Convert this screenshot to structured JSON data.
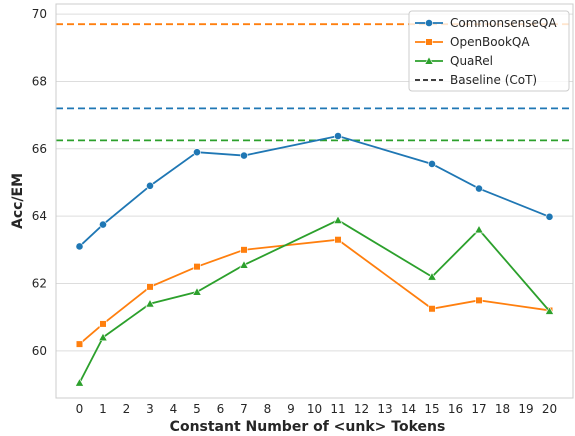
{
  "chart_data": {
    "type": "line",
    "xlabel": "Constant Number of <unk> Tokens",
    "ylabel": "Acc/EM",
    "xlim": [
      -1,
      21
    ],
    "ylim": [
      58.6,
      70.3
    ],
    "x_ticks": [
      0,
      1,
      2,
      3,
      4,
      5,
      6,
      7,
      8,
      9,
      10,
      11,
      12,
      13,
      14,
      15,
      16,
      17,
      18,
      19,
      20
    ],
    "y_ticks": [
      60,
      62,
      64,
      66,
      68,
      70
    ],
    "grid": "horizontal",
    "legend_position": "top-right",
    "x": [
      0,
      1,
      3,
      5,
      7,
      11,
      15,
      17,
      20
    ],
    "series": [
      {
        "name": "CommonsenseQA",
        "color": "#1f77b4",
        "marker": "circle",
        "values": [
          63.1,
          63.75,
          64.9,
          65.9,
          65.8,
          66.38,
          65.55,
          64.82,
          63.98
        ],
        "baseline": 67.2
      },
      {
        "name": "OpenBookQA",
        "color": "#ff7f0e",
        "marker": "square",
        "values": [
          60.2,
          60.8,
          61.9,
          62.5,
          63.0,
          63.3,
          61.25,
          61.5,
          61.2
        ],
        "baseline": 69.7
      },
      {
        "name": "QuaRel",
        "color": "#2ca02c",
        "marker": "triangle",
        "values": [
          59.05,
          60.4,
          61.4,
          61.75,
          62.55,
          63.88,
          62.2,
          63.6,
          61.18
        ],
        "baseline": 66.25
      }
    ],
    "legend_baseline_label": "Baseline (CoT)"
  }
}
